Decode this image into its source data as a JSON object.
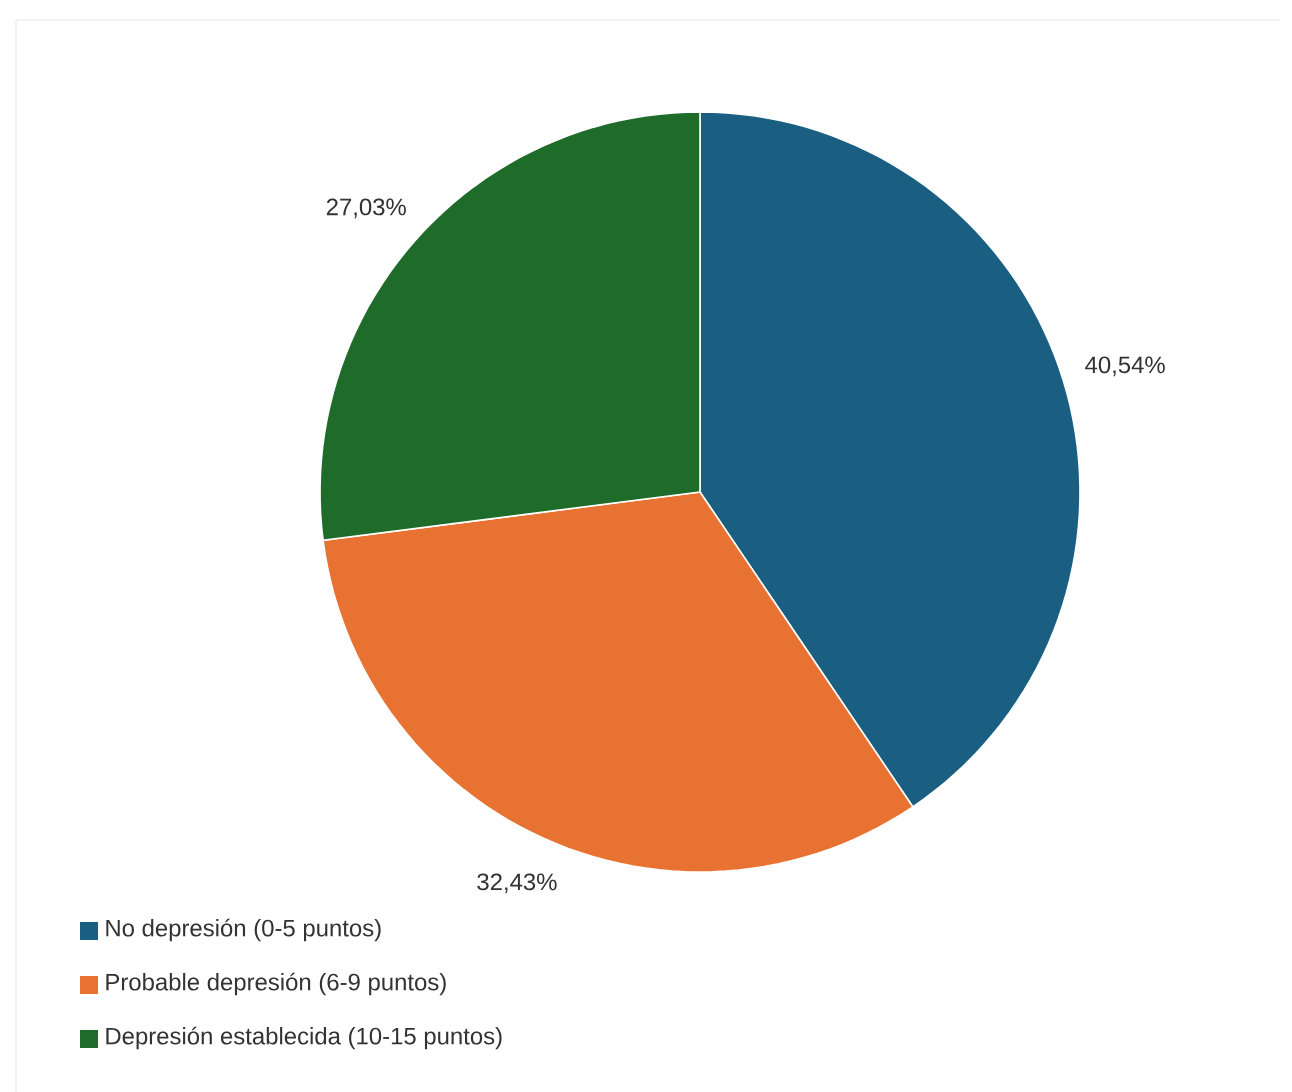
{
  "chart_data": {
    "type": "pie",
    "categories": [
      "No depresión (0-5 puntos)",
      "Probable depresión (6-9 puntos)",
      "Depresión establecida (10-15 puntos)"
    ],
    "values": [
      40.54,
      32.43,
      27.03
    ],
    "colors": [
      "#1a5f82",
      "#e87232",
      "#1f6b2a"
    ],
    "value_labels": [
      "40,54%",
      "32,43%",
      "27,03%"
    ],
    "legend": "bottom left"
  }
}
